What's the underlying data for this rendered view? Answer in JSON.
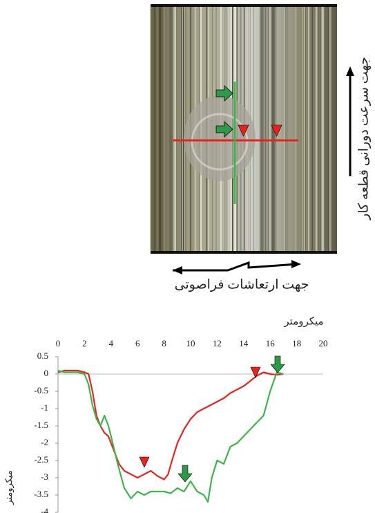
{
  "chart_data": {
    "type": "line",
    "annotations": [
      "جهت سرعت دورانی قطعه کار",
      "جهت ارتعاشات فراصوتی"
    ],
    "x_label": "میکرومتر",
    "y_label": "میکرومتر",
    "xlim": [
      0,
      20
    ],
    "xticks": [
      0,
      2,
      4,
      6,
      8,
      10,
      12,
      14,
      16,
      18,
      20
    ],
    "ylim": [
      -4,
      0.5
    ],
    "yticks": [
      0.5,
      0,
      -0.5,
      -1,
      -1.5,
      -2,
      -2.5,
      -3,
      -3.5,
      -4
    ],
    "series": [
      {
        "color": "#e8231f",
        "x": [
          0,
          0.5,
          1,
          1.5,
          2,
          2.3,
          2.6,
          2.9,
          3.2,
          3.5,
          3.8,
          4,
          4.3,
          4.6,
          5,
          5.5,
          6,
          6.5,
          7,
          7.5,
          8,
          8.3,
          8.6,
          9,
          9.5,
          10,
          10.5,
          11,
          11.5,
          12,
          12.5,
          13,
          13.5,
          14,
          14.5,
          15,
          15.5,
          16,
          16.5,
          17
        ],
        "values": [
          0.05,
          0.1,
          0.1,
          0.1,
          0.05,
          0,
          -0.5,
          -1.2,
          -1.5,
          -1.7,
          -1.8,
          -2.0,
          -2.3,
          -2.6,
          -2.8,
          -2.9,
          -3.0,
          -2.9,
          -2.8,
          -2.95,
          -3.05,
          -2.9,
          -2.5,
          -2.0,
          -1.6,
          -1.3,
          -1.1,
          -1.0,
          -0.9,
          -0.8,
          -0.7,
          -0.55,
          -0.45,
          -0.35,
          -0.2,
          -0.05,
          0.05,
          0,
          -0.02,
          0
        ]
      },
      {
        "color": "#3cb54a",
        "x": [
          0,
          0.5,
          1,
          1.5,
          2,
          2.3,
          2.6,
          2.9,
          3.2,
          3.5,
          3.8,
          4,
          4.5,
          5,
          5.5,
          6,
          6.5,
          7,
          7.5,
          8,
          8.5,
          9,
          9.5,
          10,
          10.5,
          11,
          11.3,
          11.6,
          12,
          12.5,
          13,
          13.5,
          14,
          14.5,
          15,
          15.5,
          16,
          16.5,
          17
        ],
        "values": [
          0.1,
          0.05,
          0.05,
          0.05,
          0,
          -0.3,
          -0.9,
          -1.3,
          -1.5,
          -1.2,
          -1.5,
          -1.8,
          -2.6,
          -3.3,
          -3.6,
          -3.4,
          -3.5,
          -3.4,
          -3.4,
          -3.4,
          -3.45,
          -3.3,
          -3.4,
          -3.1,
          -3.4,
          -3.5,
          -3.7,
          -3.0,
          -2.5,
          -2.6,
          -2.1,
          -2.0,
          -1.8,
          -1.6,
          -1.4,
          -1.2,
          -0.5,
          0.05,
          0
        ]
      }
    ]
  }
}
